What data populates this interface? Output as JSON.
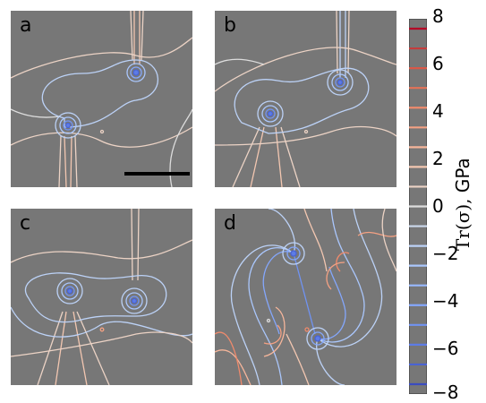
{
  "panels": [
    {
      "label": "a"
    },
    {
      "label": "b"
    },
    {
      "label": "c"
    },
    {
      "label": "d"
    }
  ],
  "colorbar": {
    "ticks": [
      "8",
      "6",
      "4",
      "2",
      "0",
      "−2",
      "−4",
      "−6",
      "−8"
    ],
    "label_math": "Tr(σ),",
    "label_unit": " GPa",
    "min": -8,
    "max": 8,
    "colors": [
      "#3b4cc0",
      "#4a63d3",
      "#5d7ce6",
      "#7093f3",
      "#84a7fc",
      "#98b9ff",
      "#aac7fd",
      "#bcd2f7",
      "#ccd9ed",
      "#dddddd",
      "#ecd3c5",
      "#f3c7b1",
      "#f6b69b",
      "#f4a183",
      "#ef8a6c",
      "#e57257",
      "#d95847",
      "#c43c3c",
      "#b40426"
    ]
  }
}
